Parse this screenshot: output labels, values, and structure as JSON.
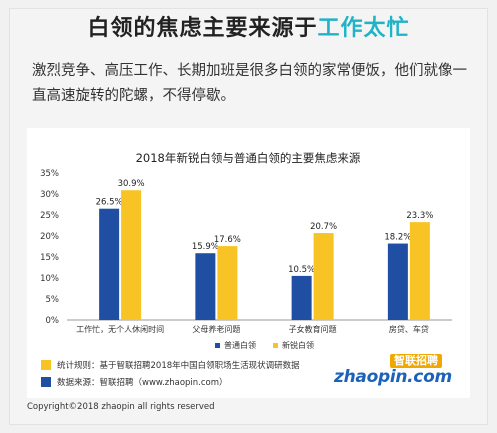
{
  "header": {
    "title_prefix": "白领的焦虑主要来源于",
    "title_highlight": "工作太忙"
  },
  "intro_text": "激烈竞争、高压工作、长期加班是很多白领的家常便饭，他们就像一直高速旋转的陀螺，不得停歇。",
  "chart_data": {
    "type": "bar",
    "title": "2018年新锐白领与普通白领的主要焦虑来源",
    "categories": [
      "工作忙，无个人休闲时间",
      "父母养老问题",
      "子女教育问题",
      "房贷、车贷"
    ],
    "series": [
      {
        "name": "普通白领",
        "values": [
          26.5,
          15.9,
          10.5,
          18.2
        ],
        "labels": [
          "26.5%",
          "15.9%",
          "10.5%",
          "18.2%"
        ]
      },
      {
        "name": "新锐白领",
        "values": [
          30.9,
          17.6,
          20.7,
          23.3
        ],
        "labels": [
          "30.9%",
          "17.6%",
          "20.7%",
          "23.3%"
        ]
      }
    ],
    "ylim": [
      0,
      35
    ],
    "yticks": [
      "0%",
      "5%",
      "10%",
      "15%",
      "20%",
      "25%",
      "30%",
      "35%"
    ],
    "grid": false,
    "legend_position": "bottom",
    "colors": {
      "普通白领": "#1f4ea3",
      "新锐白领": "#f7c325"
    }
  },
  "sources": {
    "scope": "统计规则：基于智联招聘2018年中国白领职场生活现状调研数据",
    "source": "数据来源：智联招聘（www.zhaopin.com）",
    "scope_color": "#f7c325",
    "source_color": "#1f4ea3"
  },
  "logo": {
    "top_text": "智联招聘",
    "main_text": "zhaopin.com"
  },
  "copyright": "Copyright©2018 zhaopin all rights reserved"
}
